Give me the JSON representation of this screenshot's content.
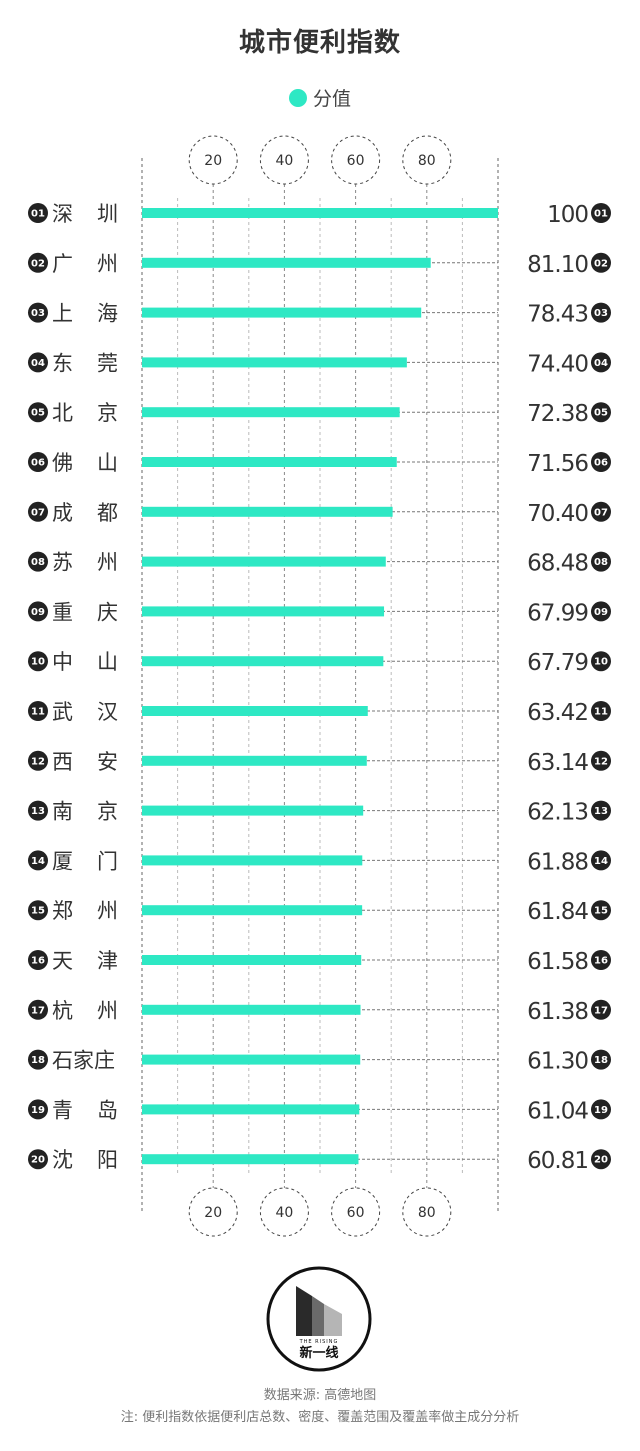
{
  "chart_data": {
    "type": "bar",
    "title": "城市便利指数",
    "legend_position": "top-center",
    "series": [
      {
        "name": "分值",
        "color": "#2ee8c4",
        "values": [
          100,
          81.1,
          78.43,
          74.4,
          72.38,
          71.56,
          70.4,
          68.48,
          67.99,
          67.79,
          63.42,
          63.14,
          62.13,
          61.88,
          61.84,
          61.58,
          61.38,
          61.3,
          61.04,
          60.81
        ]
      }
    ],
    "categories": [
      "深圳",
      "广州",
      "上海",
      "东莞",
      "北京",
      "佛山",
      "成都",
      "苏州",
      "重庆",
      "中山",
      "武汉",
      "西安",
      "南京",
      "厦门",
      "郑州",
      "天津",
      "杭州",
      "石家庄",
      "青岛",
      "沈阳"
    ],
    "value_labels": [
      "100",
      "81.10",
      "78.43",
      "74.40",
      "72.38",
      "71.56",
      "70.40",
      "68.48",
      "67.99",
      "67.79",
      "63.42",
      "63.14",
      "62.13",
      "61.88",
      "61.84",
      "61.58",
      "61.38",
      "61.30",
      "61.04",
      "60.81"
    ],
    "ranks": [
      "01",
      "02",
      "03",
      "04",
      "05",
      "06",
      "07",
      "08",
      "09",
      "10",
      "11",
      "12",
      "13",
      "14",
      "15",
      "16",
      "17",
      "18",
      "19",
      "20"
    ],
    "x_ticks": [
      "20",
      "40",
      "60",
      "80"
    ],
    "xlim": [
      0,
      100
    ],
    "grid": true
  },
  "logo": {
    "text": "新一线",
    "tagline": "THE RISING"
  },
  "footer": {
    "source": "数据来源: 高德地图",
    "note": "注: 便利指数依据便利店总数、密度、覆盖范围及覆盖率做主成分分析"
  }
}
